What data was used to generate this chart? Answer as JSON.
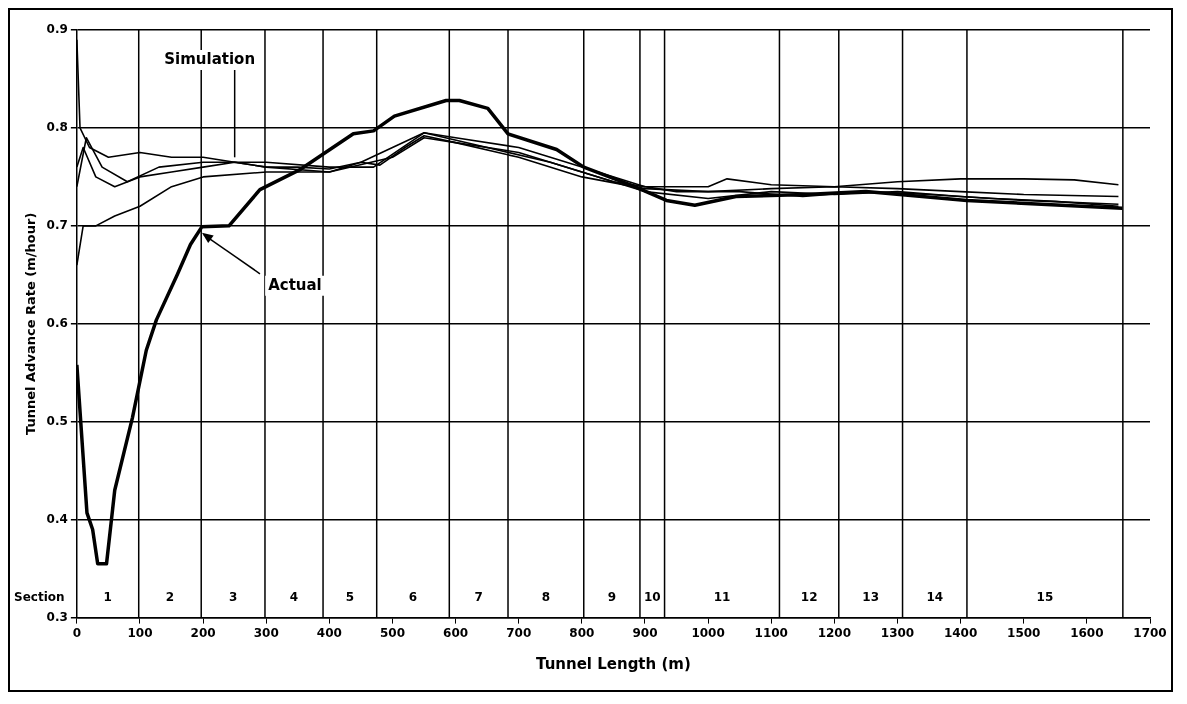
{
  "chart_data": {
    "type": "line",
    "xlabel": "Tunnel Length (m)",
    "ylabel": "Tunnel Advance Rate (m/hour)",
    "xlim": [
      0,
      1700
    ],
    "xticks": [
      0,
      100,
      200,
      300,
      400,
      500,
      600,
      700,
      800,
      900,
      1000,
      1100,
      1200,
      1300,
      1400,
      1500,
      1600,
      1700
    ],
    "ylim": [
      0.3,
      0.9
    ],
    "yticks": [
      0.3,
      0.4,
      0.5,
      0.6,
      0.7,
      0.8,
      0.9
    ],
    "grid": "y",
    "legend": false,
    "marker": "none",
    "line_style": "solid",
    "series": [
      {
        "color": "#000000",
        "x": [
          0,
          16,
          25,
          33,
          47,
          60,
          88,
          110,
          126,
          159,
          180,
          198,
          241,
          290,
          355,
          438,
          470,
          503,
          585,
          606,
          651,
          683,
          760,
          803,
          880,
          934,
          979,
          1044,
          1154,
          1250,
          1410,
          1656
        ],
        "values": [
          0.558,
          0.407,
          0.39,
          0.355,
          0.355,
          0.43,
          0.504,
          0.573,
          0.604,
          0.65,
          0.681,
          0.699,
          0.7,
          0.737,
          0.758,
          0.794,
          0.797,
          0.812,
          0.828,
          0.828,
          0.82,
          0.794,
          0.778,
          0.76,
          0.741,
          0.726,
          0.721,
          0.73,
          0.732,
          0.735,
          0.726,
          0.718
        ]
      },
      {
        "color": "#000000",
        "x": [
          0,
          5,
          20,
          50,
          100,
          150,
          200,
          250,
          300,
          350,
          400,
          450,
          500,
          550,
          600,
          700,
          800,
          900,
          1000,
          1030,
          1100,
          1200,
          1300,
          1400,
          1500,
          1580,
          1650
        ],
        "values": [
          0.89,
          0.8,
          0.78,
          0.77,
          0.775,
          0.77,
          0.77,
          0.765,
          0.76,
          0.76,
          0.758,
          0.765,
          0.78,
          0.795,
          0.79,
          0.78,
          0.76,
          0.74,
          0.74,
          0.748,
          0.742,
          0.74,
          0.745,
          0.748,
          0.748,
          0.747,
          0.742
        ]
      },
      {
        "color": "#000000",
        "x": [
          0,
          10,
          30,
          60,
          100,
          150,
          200,
          300,
          400,
          450,
          480,
          520,
          550,
          600,
          700,
          800,
          900,
          1000,
          1100,
          1200,
          1300,
          1400,
          1500,
          1650
        ],
        "values": [
          0.66,
          0.7,
          0.7,
          0.71,
          0.72,
          0.74,
          0.75,
          0.755,
          0.755,
          0.765,
          0.762,
          0.78,
          0.792,
          0.785,
          0.775,
          0.755,
          0.735,
          0.728,
          0.735,
          0.732,
          0.735,
          0.73,
          0.726,
          0.722
        ]
      },
      {
        "color": "#000000",
        "x": [
          0,
          10,
          30,
          60,
          100,
          150,
          200,
          250,
          300,
          400,
          500,
          550,
          600,
          700,
          800,
          900,
          1000,
          1100,
          1200,
          1300,
          1400,
          1500,
          1650
        ],
        "values": [
          0.76,
          0.78,
          0.75,
          0.74,
          0.75,
          0.755,
          0.76,
          0.765,
          0.76,
          0.755,
          0.77,
          0.79,
          0.785,
          0.77,
          0.75,
          0.738,
          0.735,
          0.738,
          0.74,
          0.738,
          0.735,
          0.732,
          0.73
        ]
      },
      {
        "color": "#000000",
        "x": [
          0,
          15,
          40,
          80,
          130,
          200,
          300,
          400,
          470,
          550,
          650,
          750,
          850,
          950,
          1050,
          1150,
          1250,
          1350,
          1450,
          1550,
          1650
        ],
        "values": [
          0.74,
          0.79,
          0.76,
          0.745,
          0.76,
          0.765,
          0.765,
          0.76,
          0.76,
          0.795,
          0.78,
          0.765,
          0.745,
          0.735,
          0.735,
          0.73,
          0.735,
          0.732,
          0.728,
          0.725,
          0.72
        ]
      }
    ],
    "ref_lines": [
      {
        "axis": "x",
        "value": 98
      },
      {
        "axis": "x",
        "value": 197
      },
      {
        "axis": "x",
        "value": 298
      },
      {
        "axis": "x",
        "value": 390
      },
      {
        "axis": "x",
        "value": 475
      },
      {
        "axis": "x",
        "value": 590
      },
      {
        "axis": "x",
        "value": 683
      },
      {
        "axis": "x",
        "value": 803
      },
      {
        "axis": "x",
        "value": 892
      },
      {
        "axis": "x",
        "value": 931
      },
      {
        "axis": "x",
        "value": 1113
      },
      {
        "axis": "x",
        "value": 1207
      },
      {
        "axis": "x",
        "value": 1308
      },
      {
        "axis": "x",
        "value": 1410
      },
      {
        "axis": "x",
        "value": 1657
      }
    ],
    "annotations": [
      "Section",
      "1",
      "2",
      "3",
      "4",
      "5",
      "6",
      "7",
      "8",
      "9",
      "10",
      "11",
      "12",
      "13",
      "14",
      "15",
      {
        "text": "Simulation",
        "x": 250,
        "y": 0.77
      },
      {
        "text": "Actual",
        "x": 195,
        "y": 0.695
      }
    ]
  }
}
